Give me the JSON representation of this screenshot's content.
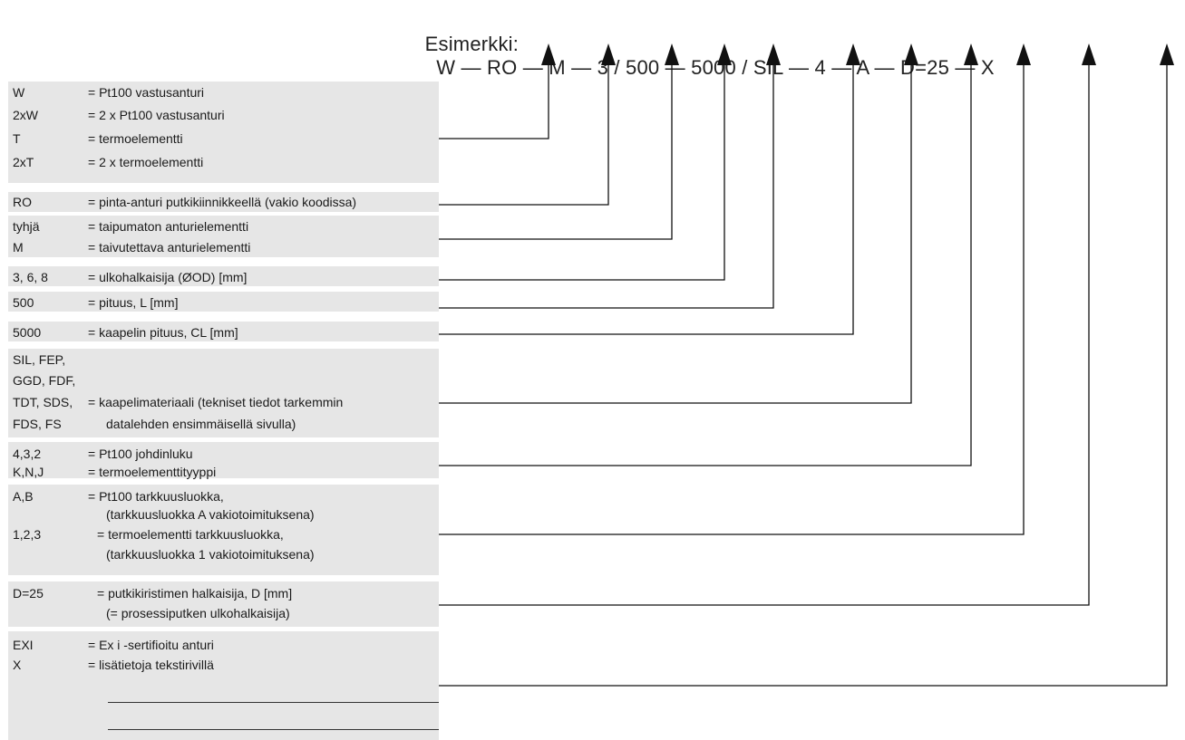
{
  "header": {
    "label": "Esimerkki:",
    "segments": [
      "W",
      "RO",
      "M",
      "3 / 500",
      "5000 / SIL",
      "4",
      "A",
      "D=25",
      "X"
    ],
    "separator": "—"
  },
  "groups": [
    {
      "entries": [
        {
          "code": "W",
          "desc": "= Pt100 vastusanturi"
        },
        {
          "code": "2xW",
          "desc": "= 2 x Pt100 vastusanturi"
        },
        {
          "code": "T",
          "desc": "= termoelementti"
        },
        {
          "code": "2xT",
          "desc": "= 2 x termoelementti"
        }
      ]
    },
    {
      "entries": [
        {
          "code": "RO",
          "desc": "= pinta-anturi putkikiinnikkeellä (vakio koodissa)"
        }
      ]
    },
    {
      "entries": [
        {
          "code": "tyhjä",
          "desc": "= taipumaton anturielementti"
        },
        {
          "code": "M",
          "desc": "= taivutettava anturielementti"
        }
      ]
    },
    {
      "entries": [
        {
          "code": "3, 6, 8",
          "desc": "= ulkohalkaisija (ØOD) [mm]"
        }
      ]
    },
    {
      "entries": [
        {
          "code": "500",
          "desc": "= pituus, L [mm]"
        }
      ]
    },
    {
      "entries": [
        {
          "code": "5000",
          "desc": "= kaapelin pituus, CL [mm]"
        }
      ]
    },
    {
      "entries": [
        {
          "code": "SIL, FEP,",
          "desc": ""
        },
        {
          "code": "GGD, FDF,",
          "desc": ""
        },
        {
          "code": "TDT, SDS,",
          "desc": "= kaapelimateriaali (tekniset tiedot tarkemmin"
        },
        {
          "code": "FDS, FS",
          "desc": "",
          "cont": "datalehden ensimmäisellä sivulla)"
        }
      ]
    },
    {
      "entries": [
        {
          "code": "4,3,2",
          "desc": "= Pt100 johdinluku"
        },
        {
          "code": "K,N,J",
          "desc": "= termoelementtityyppi"
        }
      ]
    },
    {
      "entries": [
        {
          "code": "A,B",
          "desc": "= Pt100 tarkkuusluokka,"
        },
        {
          "code": "",
          "desc": "",
          "cont": "(tarkkuusluokka A vakiotoimituksena)"
        },
        {
          "code": "1,2,3",
          "desc": "= termoelementti tarkkuusluokka,",
          "wide": true
        },
        {
          "code": "",
          "desc": "",
          "cont": "(tarkkuusluokka 1 vakiotoimituksena)"
        }
      ]
    },
    {
      "entries": [
        {
          "code": "D=25",
          "desc": "= putkikiristimen halkaisija, D [mm]",
          "wide": true
        },
        {
          "code": "",
          "desc": "",
          "cont": "(= prosessiputken ulkohalkaisija)"
        }
      ]
    },
    {
      "entries": [
        {
          "code": "EXI",
          "desc": "= Ex i -sertifioitu anturi"
        },
        {
          "code": "X",
          "desc": "= lisätietoja tekstirivillä"
        }
      ],
      "blank_lines": 2
    }
  ]
}
